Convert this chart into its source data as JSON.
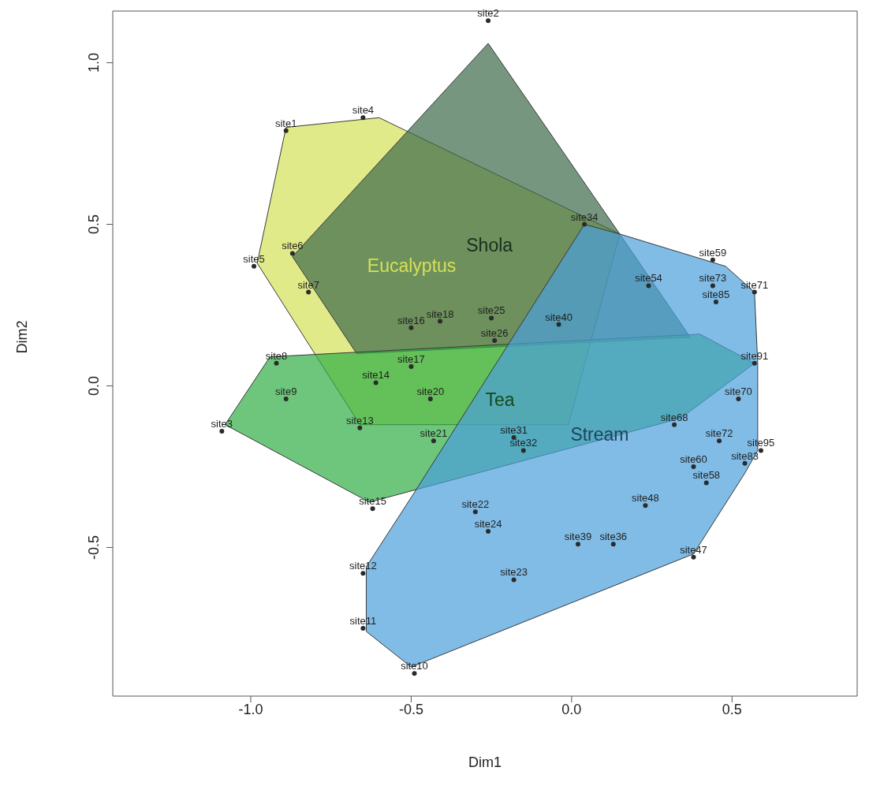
{
  "chart_data": {
    "type": "area",
    "xlabel": "Dim1",
    "ylabel": "Dim2",
    "xlim": [
      -1.43,
      0.89
    ],
    "ylim": [
      -0.96,
      1.16
    ],
    "xticks": [
      {
        "value": -1,
        "label": "-1.0"
      },
      -0.5,
      {
        "value": 0,
        "label": "0.0"
      },
      0.5
    ],
    "yticks": [
      -0.5,
      {
        "value": 0,
        "label": "0.0"
      },
      0.5,
      {
        "value": 1,
        "label": "1.0"
      }
    ],
    "series": [
      {
        "name": "Eucalyptus",
        "color": "#d4e157",
        "x": [
          -0.89,
          -0.6,
          0.15,
          -0.01,
          -0.66,
          -0.98
        ],
        "values": [
          0.8,
          0.83,
          0.47,
          -0.12,
          -0.12,
          0.38
        ]
      },
      {
        "name": "Shola",
        "color": "#3d6a4a",
        "x": [
          -0.26,
          0.15,
          0.37,
          -0.67,
          -0.87
        ],
        "values": [
          1.06,
          0.47,
          0.15,
          0.1,
          0.4
        ]
      },
      {
        "name": "Tea",
        "color": "#2fae45",
        "x": [
          -0.94,
          0.4,
          0.57,
          0.34,
          -0.63,
          -1.08
        ],
        "values": [
          0.09,
          0.16,
          0.07,
          -0.1,
          -0.36,
          -0.12
        ]
      },
      {
        "name": "Stream",
        "color": "#4a9fdc",
        "x": [
          0.04,
          0.15,
          0.48,
          0.57,
          0.58,
          0.58,
          0.54,
          0.38,
          -0.5,
          -0.64,
          -0.64,
          -0.49
        ],
        "values": [
          0.5,
          0.47,
          0.37,
          0.29,
          0.07,
          -0.2,
          -0.27,
          -0.52,
          -0.87,
          -0.76,
          -0.56,
          -0.33
        ]
      },
      {
        "type": "scatter",
        "marker": "circle",
        "color": "#2b2b2b",
        "x": [
          -0.89,
          -0.26,
          -1.09,
          -0.65,
          -0.99,
          -0.87,
          -0.82,
          -0.92,
          -0.89,
          -0.49,
          -0.65,
          -0.65,
          -0.66,
          -0.61,
          -0.62,
          -0.5,
          -0.5,
          -0.41,
          -0.44,
          -0.43,
          -0.3,
          -0.18,
          -0.26,
          -0.25,
          -0.24,
          -0.18,
          -0.15,
          0.04,
          0.13,
          0.02,
          -0.04,
          0.38,
          0.23,
          0.24,
          0.42,
          0.44,
          0.38,
          0.32,
          0.52,
          0.57,
          0.46,
          0.44,
          0.45,
          0.57,
          0.59,
          0.54
        ],
        "values": [
          0.79,
          1.13,
          -0.14,
          0.83,
          0.37,
          0.41,
          0.29,
          0.07,
          -0.04,
          -0.89,
          -0.75,
          -0.58,
          -0.13,
          0.01,
          -0.38,
          0.18,
          0.06,
          0.2,
          -0.04,
          -0.17,
          -0.39,
          -0.6,
          -0.45,
          0.21,
          0.14,
          -0.16,
          -0.2,
          0.5,
          -0.49,
          -0.49,
          0.19,
          -0.53,
          -0.37,
          0.31,
          -0.3,
          0.39,
          -0.25,
          -0.12,
          -0.04,
          0.29,
          -0.17,
          0.31,
          0.26,
          0.07,
          -0.2,
          -0.24
        ]
      }
    ],
    "annotations": [
      {
        "text": "site1",
        "x": -0.89,
        "y": 0.79
      },
      {
        "text": "site2",
        "x": -0.26,
        "y": 1.13
      },
      {
        "text": "site3",
        "x": -1.09,
        "y": -0.14
      },
      {
        "text": "site4",
        "x": -0.65,
        "y": 0.83
      },
      {
        "text": "site5",
        "x": -0.99,
        "y": 0.37
      },
      {
        "text": "site6",
        "x": -0.87,
        "y": 0.41
      },
      {
        "text": "site7",
        "x": -0.82,
        "y": 0.29
      },
      {
        "text": "site8",
        "x": -0.92,
        "y": 0.07
      },
      {
        "text": "site9",
        "x": -0.89,
        "y": -0.04
      },
      {
        "text": "site10",
        "x": -0.49,
        "y": -0.89
      },
      {
        "text": "site11",
        "x": -0.65,
        "y": -0.75
      },
      {
        "text": "site12",
        "x": -0.65,
        "y": -0.58
      },
      {
        "text": "site13",
        "x": -0.66,
        "y": -0.13
      },
      {
        "text": "site14",
        "x": -0.61,
        "y": 0.01
      },
      {
        "text": "site15",
        "x": -0.62,
        "y": -0.38
      },
      {
        "text": "site16",
        "x": -0.5,
        "y": 0.18
      },
      {
        "text": "site17",
        "x": -0.5,
        "y": 0.06
      },
      {
        "text": "site18",
        "x": -0.41,
        "y": 0.2
      },
      {
        "text": "site20",
        "x": -0.44,
        "y": -0.04
      },
      {
        "text": "site21",
        "x": -0.43,
        "y": -0.17
      },
      {
        "text": "site22",
        "x": -0.3,
        "y": -0.39
      },
      {
        "text": "site23",
        "x": -0.18,
        "y": -0.6
      },
      {
        "text": "site24",
        "x": -0.26,
        "y": -0.45
      },
      {
        "text": "site25",
        "x": -0.25,
        "y": 0.21
      },
      {
        "text": "site26",
        "x": -0.24,
        "y": 0.14
      },
      {
        "text": "site31",
        "x": -0.18,
        "y": -0.16
      },
      {
        "text": "site32",
        "x": -0.15,
        "y": -0.2
      },
      {
        "text": "site34",
        "x": 0.04,
        "y": 0.5
      },
      {
        "text": "site36",
        "x": 0.13,
        "y": -0.49
      },
      {
        "text": "site39",
        "x": 0.02,
        "y": -0.49
      },
      {
        "text": "site40",
        "x": -0.04,
        "y": 0.19
      },
      {
        "text": "site47",
        "x": 0.38,
        "y": -0.53
      },
      {
        "text": "site48",
        "x": 0.23,
        "y": -0.37
      },
      {
        "text": "site54",
        "x": 0.24,
        "y": 0.31
      },
      {
        "text": "site58",
        "x": 0.42,
        "y": -0.3
      },
      {
        "text": "site59",
        "x": 0.44,
        "y": 0.39
      },
      {
        "text": "site60",
        "x": 0.38,
        "y": -0.25
      },
      {
        "text": "site68",
        "x": 0.32,
        "y": -0.12
      },
      {
        "text": "site70",
        "x": 0.52,
        "y": -0.04
      },
      {
        "text": "site71",
        "x": 0.57,
        "y": 0.29
      },
      {
        "text": "site72",
        "x": 0.46,
        "y": -0.17
      },
      {
        "text": "site73",
        "x": 0.44,
        "y": 0.31
      },
      {
        "text": "site85",
        "x": 0.45,
        "y": 0.26
      },
      {
        "text": "site91",
        "x": 0.57,
        "y": 0.07
      },
      {
        "text": "site95",
        "x": 0.59,
        "y": -0.2
      },
      {
        "text": "site83",
        "x": 0.54,
        "y": -0.24
      }
    ]
  }
}
